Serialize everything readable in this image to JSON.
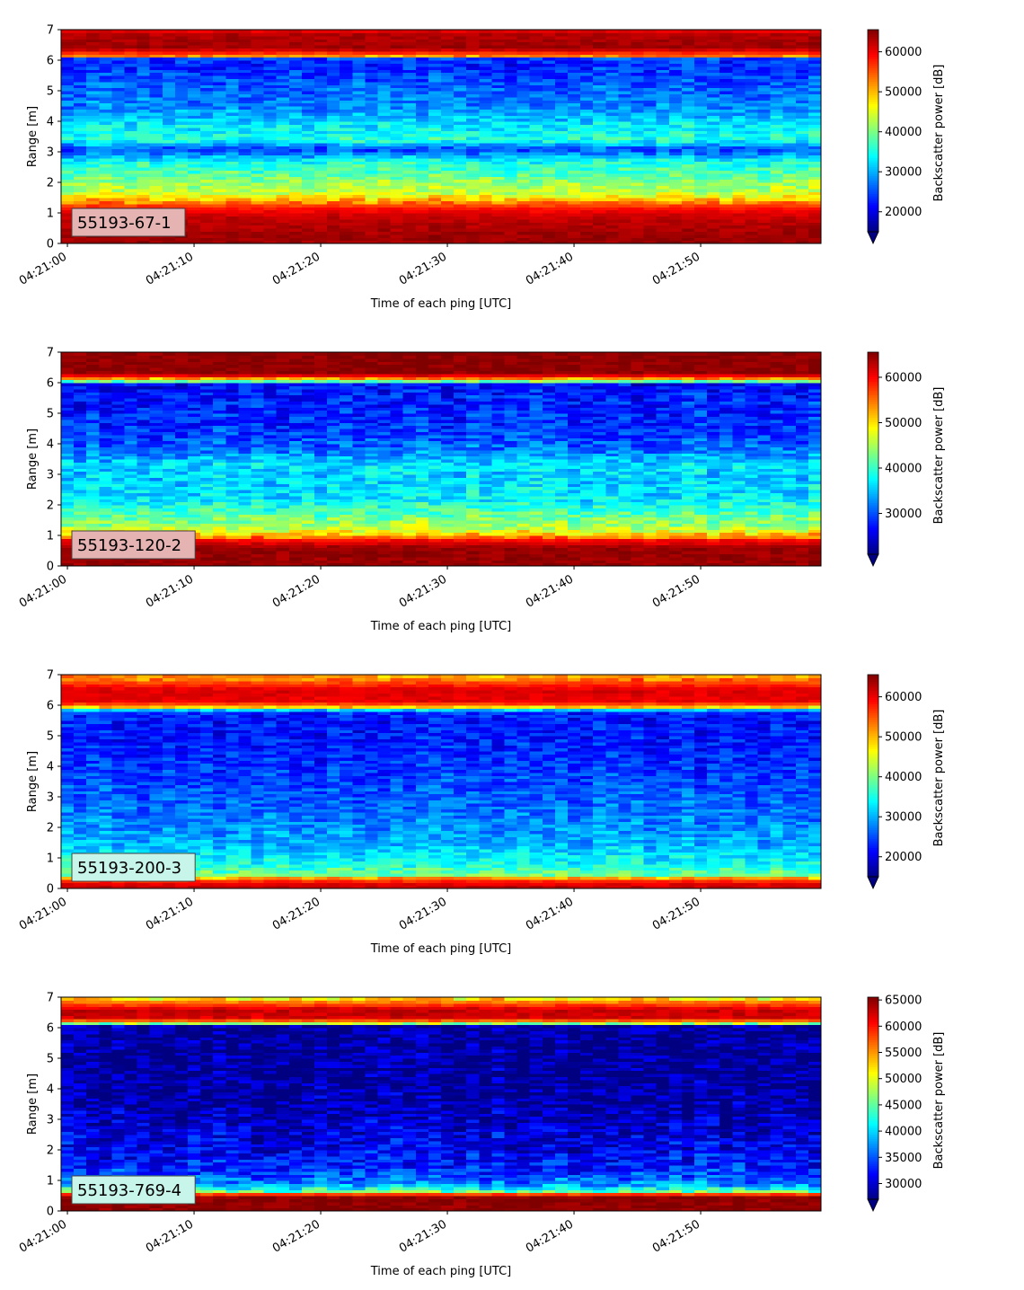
{
  "figure": {
    "panels": [
      {
        "label": "55193-67-1",
        "label_bg": "#e6b3b3"
      },
      {
        "label": "55193-120-2",
        "label_bg": "#e6b3b3"
      },
      {
        "label": "55193-200-3",
        "label_bg": "#c8f5ea"
      },
      {
        "label": "55193-769-4",
        "label_bg": "#c8f5ea"
      }
    ]
  },
  "chart_data": [
    {
      "type": "heatmap",
      "title": "",
      "xlabel": "Time of each ping [UTC]",
      "ylabel": "Range [m]",
      "xlim": [
        "04:20:59.5",
        "04:21:59.5"
      ],
      "ylim": [
        0,
        7
      ],
      "x_ticks": [
        "04:21:00",
        "04:21:10",
        "04:21:20",
        "04:21:30",
        "04:21:40",
        "04:21:50"
      ],
      "y_ticks": [
        0,
        1,
        2,
        3,
        4,
        5,
        6,
        7
      ],
      "colorbar": {
        "label": "Backscatter power [dB]",
        "colormap": "jet",
        "min": 15000,
        "max": 65535,
        "ticks": [
          20000,
          30000,
          40000,
          50000,
          60000
        ],
        "extend": "min"
      },
      "profile": [
        {
          "range": 0.1,
          "value": 64000
        },
        {
          "range": 0.3,
          "value": 64000
        },
        {
          "range": 0.9,
          "value": 62000
        },
        {
          "range": 1.2,
          "value": 58000
        },
        {
          "range": 1.5,
          "value": 48000
        },
        {
          "range": 1.7,
          "value": 43000
        },
        {
          "range": 2.0,
          "value": 42000
        },
        {
          "range": 2.3,
          "value": 38000
        },
        {
          "range": 2.7,
          "value": 35000
        },
        {
          "range": 3.1,
          "value": 24000
        },
        {
          "range": 3.4,
          "value": 36000
        },
        {
          "range": 3.9,
          "value": 33000
        },
        {
          "range": 4.5,
          "value": 28000
        },
        {
          "range": 5.2,
          "value": 26000
        },
        {
          "range": 5.9,
          "value": 23000
        },
        {
          "range": 6.08,
          "value": 25000
        },
        {
          "range": 6.14,
          "value": 52000
        },
        {
          "range": 6.4,
          "value": 64000
        },
        {
          "range": 6.85,
          "value": 63000
        },
        {
          "range": 7.0,
          "value": 60000
        }
      ]
    },
    {
      "type": "heatmap",
      "title": "",
      "xlabel": "Time of each ping [UTC]",
      "ylabel": "Range [m]",
      "xlim": [
        "04:20:59.5",
        "04:21:59.5"
      ],
      "ylim": [
        0,
        7
      ],
      "x_ticks": [
        "04:21:00",
        "04:21:10",
        "04:21:20",
        "04:21:30",
        "04:21:40",
        "04:21:50"
      ],
      "y_ticks": [
        0,
        1,
        2,
        3,
        4,
        5,
        6,
        7
      ],
      "colorbar": {
        "label": "Backscatter power [dB]",
        "colormap": "jet",
        "min": 21000,
        "max": 65535,
        "ticks": [
          30000,
          40000,
          50000,
          60000
        ],
        "extend": "min"
      },
      "profile": [
        {
          "range": 0.1,
          "value": 64500
        },
        {
          "range": 0.6,
          "value": 64500
        },
        {
          "range": 0.85,
          "value": 60000
        },
        {
          "range": 1.0,
          "value": 52000
        },
        {
          "range": 1.3,
          "value": 45000
        },
        {
          "range": 1.7,
          "value": 42000
        },
        {
          "range": 2.2,
          "value": 37000
        },
        {
          "range": 2.8,
          "value": 36000
        },
        {
          "range": 3.3,
          "value": 36500
        },
        {
          "range": 3.9,
          "value": 31000
        },
        {
          "range": 4.6,
          "value": 28500
        },
        {
          "range": 5.3,
          "value": 28000
        },
        {
          "range": 5.95,
          "value": 27000
        },
        {
          "range": 6.1,
          "value": 50000
        },
        {
          "range": 6.3,
          "value": 65000
        },
        {
          "range": 7.0,
          "value": 65000
        }
      ]
    },
    {
      "type": "heatmap",
      "title": "",
      "xlabel": "Time of each ping [UTC]",
      "ylabel": "Range [m]",
      "xlim": [
        "04:20:59.5",
        "04:21:59.5"
      ],
      "ylim": [
        0,
        7
      ],
      "x_ticks": [
        "04:21:00",
        "04:21:10",
        "04:21:20",
        "04:21:30",
        "04:21:40",
        "04:21:50"
      ],
      "y_ticks": [
        0,
        1,
        2,
        3,
        4,
        5,
        6,
        7
      ],
      "colorbar": {
        "label": "Backscatter power [dB]",
        "colormap": "jet",
        "min": 15000,
        "max": 65535,
        "ticks": [
          20000,
          30000,
          40000,
          50000,
          60000
        ],
        "extend": "min"
      },
      "profile": [
        {
          "range": 0.1,
          "value": 62000
        },
        {
          "range": 0.3,
          "value": 56000
        },
        {
          "range": 0.45,
          "value": 40000
        },
        {
          "range": 0.8,
          "value": 35000
        },
        {
          "range": 1.5,
          "value": 30000
        },
        {
          "range": 2.5,
          "value": 27000
        },
        {
          "range": 3.5,
          "value": 25000
        },
        {
          "range": 4.5,
          "value": 23000
        },
        {
          "range": 5.5,
          "value": 22000
        },
        {
          "range": 5.82,
          "value": 24000
        },
        {
          "range": 5.9,
          "value": 45000
        },
        {
          "range": 6.1,
          "value": 60000
        },
        {
          "range": 6.5,
          "value": 61000
        },
        {
          "range": 6.8,
          "value": 55000
        },
        {
          "range": 7.0,
          "value": 50000
        }
      ]
    },
    {
      "type": "heatmap",
      "title": "",
      "xlabel": "Time of each ping [UTC]",
      "ylabel": "Range [m]",
      "xlim": [
        "04:20:59.5",
        "04:21:59.5"
      ],
      "ylim": [
        0,
        7
      ],
      "x_ticks": [
        "04:21:00",
        "04:21:10",
        "04:21:20",
        "04:21:30",
        "04:21:40",
        "04:21:50"
      ],
      "y_ticks": [
        0,
        1,
        2,
        3,
        4,
        5,
        6,
        7
      ],
      "colorbar": {
        "label": "Backscatter power [dB]",
        "colormap": "jet",
        "min": 27000,
        "max": 65535,
        "ticks": [
          30000,
          35000,
          40000,
          45000,
          50000,
          55000,
          60000,
          65000
        ],
        "extend": "min"
      },
      "profile": [
        {
          "range": 0.1,
          "value": 65000
        },
        {
          "range": 0.5,
          "value": 65000
        },
        {
          "range": 0.65,
          "value": 45000
        },
        {
          "range": 0.9,
          "value": 37000
        },
        {
          "range": 1.4,
          "value": 33000
        },
        {
          "range": 2.0,
          "value": 31500
        },
        {
          "range": 2.8,
          "value": 30000
        },
        {
          "range": 3.5,
          "value": 28500
        },
        {
          "range": 4.5,
          "value": 28000
        },
        {
          "range": 5.9,
          "value": 28000
        },
        {
          "range": 6.05,
          "value": 28500
        },
        {
          "range": 6.12,
          "value": 45000
        },
        {
          "range": 6.3,
          "value": 62000
        },
        {
          "range": 6.6,
          "value": 63000
        },
        {
          "range": 6.85,
          "value": 56000
        },
        {
          "range": 7.0,
          "value": 50000
        }
      ]
    }
  ]
}
